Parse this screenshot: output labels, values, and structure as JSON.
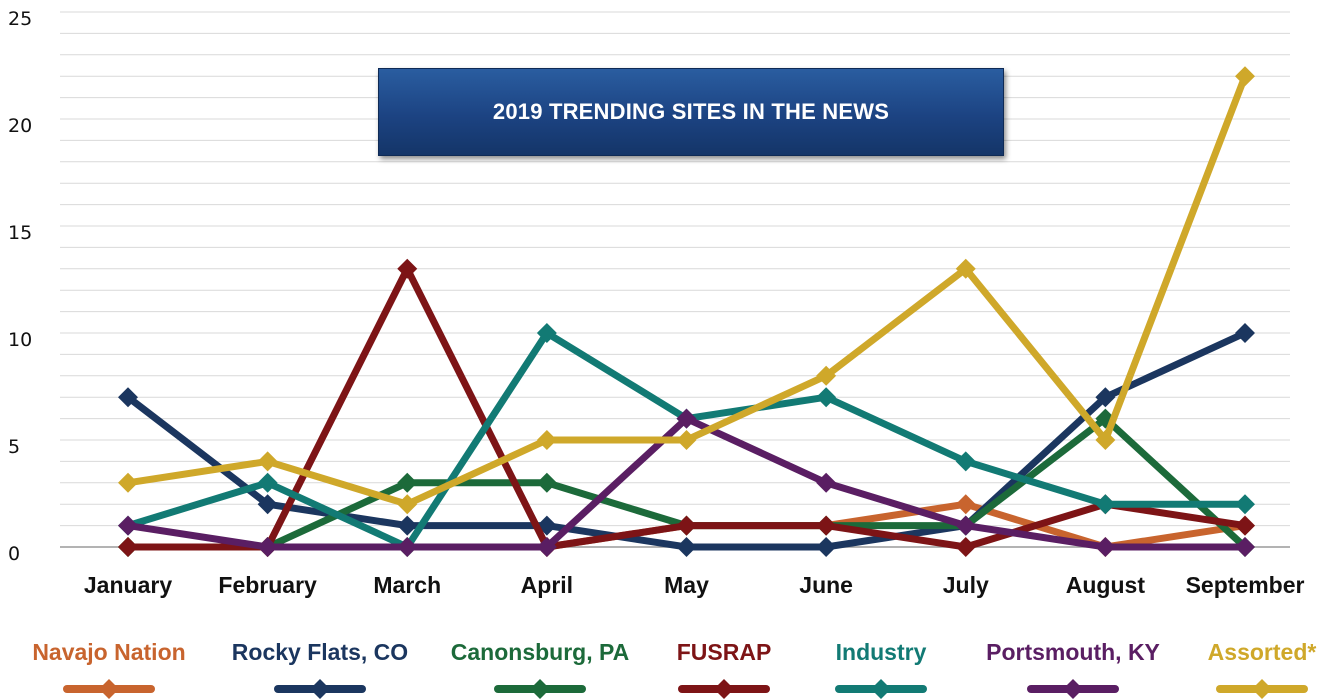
{
  "chart_data": {
    "type": "line",
    "title": "2019 TRENDING SITES IN THE NEWS",
    "categories": [
      "January",
      "February",
      "March",
      "April",
      "May",
      "June",
      "July",
      "August",
      "September"
    ],
    "ylim": [
      0,
      25
    ],
    "yticks": [
      0,
      5,
      10,
      15,
      20,
      25
    ],
    "grid": true,
    "legend_position": "bottom",
    "series": [
      {
        "name": "Navajo Nation",
        "color": "#c8642e",
        "values": [
          0,
          0,
          0,
          0,
          1,
          1,
          2,
          0,
          1
        ]
      },
      {
        "name": "Rocky Flats, CO",
        "color": "#1b365f",
        "values": [
          7,
          2,
          1,
          1,
          0,
          0,
          1,
          7,
          10
        ]
      },
      {
        "name": "Canonsburg, PA",
        "color": "#1c6a3a",
        "values": [
          0,
          0,
          3,
          3,
          1,
          1,
          1,
          6,
          0
        ]
      },
      {
        "name": "FUSRAP",
        "color": "#7d1416",
        "values": [
          0,
          0,
          13,
          0,
          1,
          1,
          0,
          2,
          1
        ]
      },
      {
        "name": "Industry",
        "color": "#127a74",
        "values": [
          1,
          3,
          0,
          10,
          6,
          7,
          4,
          2,
          2
        ]
      },
      {
        "name": "Portsmouth, KY",
        "color": "#5a1e63",
        "values": [
          1,
          0,
          0,
          0,
          6,
          3,
          1,
          0,
          0
        ]
      },
      {
        "name": "Assorted*",
        "color": "#cfa82a",
        "values": [
          3,
          4,
          2,
          5,
          5,
          8,
          13,
          5,
          22
        ]
      }
    ]
  }
}
